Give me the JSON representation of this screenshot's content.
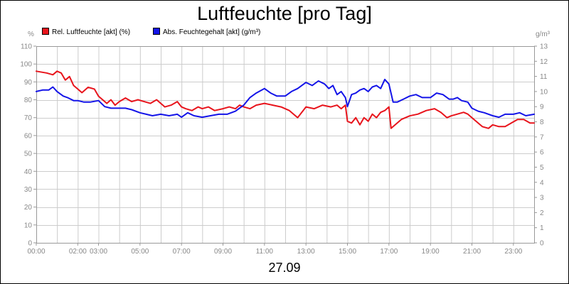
{
  "chart_data": {
    "type": "line",
    "title": "Luftfeuchte [pro Tag]",
    "xlabel": "27.09",
    "x_tick_labels": [
      "00:00",
      "02:00",
      "03:00",
      "05:00",
      "07:00",
      "09:00",
      "11:00",
      "13:00",
      "15:00",
      "17:00",
      "19:00",
      "21:00",
      "23:00"
    ],
    "x_tick_hours": [
      0,
      2,
      3,
      5,
      7,
      9,
      11,
      13,
      15,
      17,
      19,
      21,
      23
    ],
    "x_range_hours": [
      0,
      24
    ],
    "y_left": {
      "unit": "%",
      "range": [
        0,
        110
      ],
      "ticks": [
        0,
        10,
        20,
        30,
        40,
        50,
        60,
        70,
        80,
        90,
        100,
        110
      ]
    },
    "y_right": {
      "unit": "g/m³",
      "range": [
        0,
        13
      ],
      "ticks": [
        0,
        1,
        2,
        3,
        4,
        5,
        6,
        7,
        8,
        9,
        10,
        11,
        12,
        13
      ]
    },
    "grid": true,
    "legend_position": "top-left",
    "series": [
      {
        "name": "Rel. Luftfeuchte [akt] (%)",
        "color": "#e8141c",
        "axis": "left",
        "x": [
          0,
          0.5,
          0.8,
          1.0,
          1.2,
          1.4,
          1.6,
          1.8,
          2.0,
          2.2,
          2.5,
          2.8,
          3.0,
          3.2,
          3.4,
          3.6,
          3.8,
          4.0,
          4.3,
          4.6,
          4.9,
          5.2,
          5.5,
          5.8,
          6.2,
          6.5,
          6.8,
          7.0,
          7.2,
          7.5,
          7.8,
          8.0,
          8.3,
          8.6,
          9.0,
          9.3,
          9.6,
          9.8,
          10.0,
          10.3,
          10.6,
          11.0,
          11.4,
          11.8,
          12.2,
          12.6,
          13.0,
          13.4,
          13.8,
          14.2,
          14.5,
          14.7,
          14.9,
          15.0,
          15.2,
          15.4,
          15.6,
          15.8,
          16.0,
          16.2,
          16.4,
          16.6,
          16.8,
          17.0,
          17.1,
          17.3,
          17.6,
          18.0,
          18.4,
          18.8,
          19.2,
          19.5,
          19.8,
          20.0,
          20.3,
          20.6,
          20.8,
          21.0,
          21.2,
          21.5,
          21.8,
          22.0,
          22.3,
          22.6,
          22.9,
          23.2,
          23.5,
          23.8,
          24.0
        ],
        "y": [
          96,
          95,
          94,
          96,
          95,
          91,
          93,
          88,
          86,
          84,
          87,
          86,
          82,
          80,
          78,
          80,
          77,
          79,
          81,
          79,
          80,
          79,
          78,
          80,
          76,
          77,
          79,
          76,
          75,
          74,
          76,
          75,
          76,
          74,
          75,
          76,
          75,
          77,
          76,
          75,
          77,
          78,
          77,
          76,
          74,
          70,
          76,
          75,
          77,
          76,
          77,
          75,
          77,
          68,
          67,
          70,
          66,
          70,
          68,
          72,
          70,
          73,
          74,
          76,
          64,
          66,
          69,
          71,
          72,
          74,
          75,
          73,
          70,
          71,
          72,
          73,
          72,
          70,
          68,
          65,
          64,
          66,
          65,
          65,
          67,
          69,
          69,
          67,
          67
        ]
      },
      {
        "name": "Abs. Feuchtegehalt [akt] (g/m³)",
        "color": "#1414e8",
        "axis": "right",
        "x": [
          0,
          0.3,
          0.6,
          0.8,
          1.0,
          1.3,
          1.5,
          1.8,
          2.0,
          2.3,
          2.6,
          3.0,
          3.3,
          3.6,
          4.0,
          4.3,
          4.6,
          5.0,
          5.3,
          5.6,
          6.0,
          6.4,
          6.8,
          7.0,
          7.3,
          7.6,
          8.0,
          8.4,
          8.8,
          9.2,
          9.6,
          10.0,
          10.3,
          10.6,
          11.0,
          11.3,
          11.6,
          12.0,
          12.3,
          12.6,
          13.0,
          13.3,
          13.6,
          13.9,
          14.1,
          14.3,
          14.5,
          14.7,
          14.9,
          15.0,
          15.2,
          15.4,
          15.6,
          15.8,
          16.0,
          16.2,
          16.4,
          16.6,
          16.8,
          17.0,
          17.2,
          17.4,
          17.7,
          18.0,
          18.3,
          18.6,
          19.0,
          19.3,
          19.6,
          19.9,
          20.1,
          20.3,
          20.5,
          20.8,
          21.0,
          21.3,
          21.6,
          22.0,
          22.3,
          22.6,
          23.0,
          23.3,
          23.6,
          24.0
        ],
        "y": [
          10.0,
          10.1,
          10.1,
          10.3,
          10.0,
          9.7,
          9.6,
          9.4,
          9.4,
          9.3,
          9.3,
          9.4,
          9.0,
          8.9,
          8.9,
          8.9,
          8.8,
          8.6,
          8.5,
          8.4,
          8.5,
          8.4,
          8.5,
          8.3,
          8.6,
          8.4,
          8.3,
          8.4,
          8.5,
          8.5,
          8.7,
          9.1,
          9.6,
          9.9,
          10.2,
          9.9,
          9.7,
          9.7,
          10.0,
          10.2,
          10.6,
          10.4,
          10.7,
          10.5,
          10.2,
          10.4,
          9.8,
          10.0,
          9.6,
          9.0,
          9.8,
          9.9,
          10.1,
          10.2,
          10.0,
          10.3,
          10.4,
          10.2,
          10.8,
          10.5,
          9.3,
          9.3,
          9.5,
          9.7,
          9.8,
          9.6,
          9.6,
          9.9,
          9.8,
          9.5,
          9.5,
          9.6,
          9.4,
          9.3,
          8.9,
          8.7,
          8.6,
          8.4,
          8.3,
          8.5,
          8.5,
          8.6,
          8.4,
          8.5
        ]
      }
    ]
  }
}
